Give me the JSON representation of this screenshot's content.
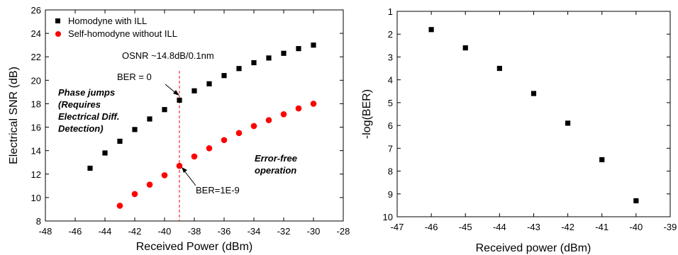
{
  "chart_data": [
    {
      "type": "scatter",
      "xlabel": "Received Power (dBm)",
      "ylabel": "Electrical SNR (dB)",
      "xlim": [
        -48,
        -28
      ],
      "ylim": [
        8,
        26
      ],
      "xticks": [
        "-48",
        "-46",
        "-44",
        "-42",
        "-40",
        "-38",
        "-36",
        "-34",
        "-32",
        "-30",
        "-28"
      ],
      "yticks": [
        "8",
        "10",
        "12",
        "14",
        "16",
        "18",
        "20",
        "22",
        "24",
        "26"
      ],
      "grid": false,
      "legend": "top-left",
      "series": [
        {
          "name": "Homodyne with ILL",
          "marker": "square",
          "color": "#000000",
          "x": [
            -45,
            -44,
            -43,
            -42,
            -41,
            -40,
            -39,
            -38,
            -37,
            -36,
            -35,
            -34,
            -33,
            -32,
            -31,
            -30
          ],
          "y": [
            12.5,
            13.8,
            14.8,
            15.8,
            16.7,
            17.5,
            18.3,
            19.1,
            19.7,
            20.4,
            21.0,
            21.5,
            21.9,
            22.3,
            22.7,
            23.0
          ]
        },
        {
          "name": "Self-homodyne without ILL",
          "marker": "circle",
          "color": "#ff0000",
          "x": [
            -43,
            -42,
            -41,
            -40,
            -39,
            -38,
            -37,
            -36,
            -35,
            -34,
            -33,
            -32,
            -31,
            -30
          ],
          "y": [
            9.3,
            10.3,
            11.1,
            11.9,
            12.7,
            13.5,
            14.2,
            14.9,
            15.5,
            16.1,
            16.6,
            17.1,
            17.6,
            18.0
          ]
        }
      ],
      "vline": {
        "x": -39,
        "color": "#ff0000",
        "style": "dashed"
      },
      "annotations": {
        "osnr": "OSNR ~14.8dB/0.1nm",
        "ber0": "BER = 0",
        "ber1e9": "BER=1E-9",
        "phase_jumps": [
          "Phase jumps",
          "(Requires",
          "Electrical Diff.",
          "Detection)"
        ],
        "error_free": [
          "Error-free",
          "operation"
        ],
        "annotation_color": "#3333aa"
      }
    },
    {
      "type": "scatter",
      "xlabel": "Received power (dBm)",
      "ylabel": "-log(BER)",
      "xlim": [
        -47,
        -39
      ],
      "ylim": [
        1,
        10
      ],
      "y_inverted": true,
      "xticks": [
        "-47",
        "-46",
        "-45",
        "-44",
        "-43",
        "-42",
        "-41",
        "-40",
        "-39"
      ],
      "yticks": [
        "1",
        "2",
        "3",
        "4",
        "5",
        "6",
        "7",
        "8",
        "9",
        "10"
      ],
      "grid": false,
      "series": [
        {
          "marker": "square",
          "color": "#000000",
          "x": [
            -46,
            -45,
            -44,
            -43,
            -42,
            -41,
            -40
          ],
          "y": [
            1.8,
            2.6,
            3.5,
            4.6,
            5.9,
            7.5,
            9.3
          ]
        }
      ]
    }
  ]
}
